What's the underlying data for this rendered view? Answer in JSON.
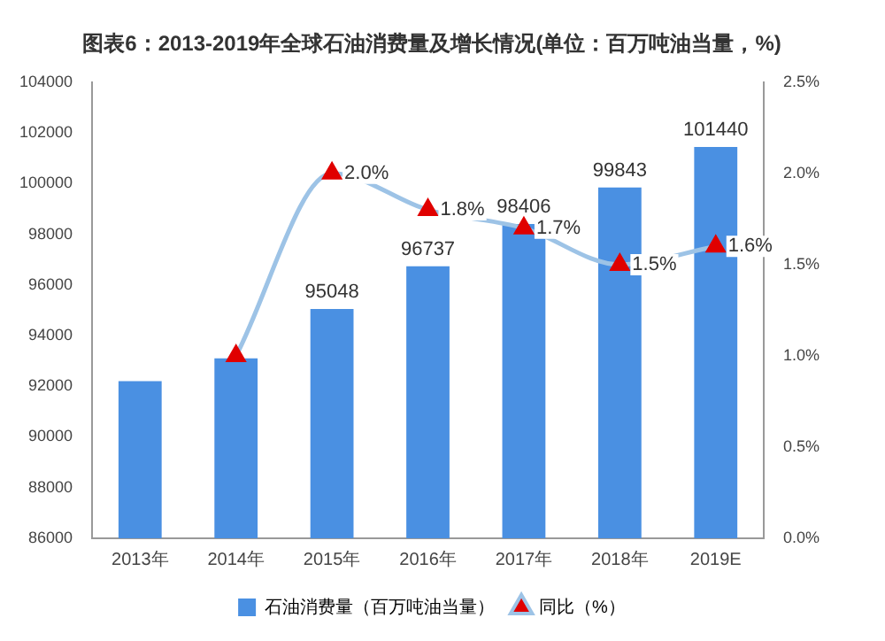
{
  "chart_data": {
    "type": "bar",
    "title": "图表6：2013-2019年全球石油消费量及增长情况(单位：百万吨油当量，%)",
    "categories": [
      "2013年",
      "2014年",
      "2015年",
      "2016年",
      "2017年",
      "2018年",
      "2019E"
    ],
    "series": [
      {
        "name": "石油消费量（百万吨油当量）",
        "color": "#4a90e2",
        "values": [
          92200,
          93100,
          95048,
          96737,
          98406,
          99843,
          101440
        ],
        "value_labels": [
          null,
          null,
          "95048",
          "96737",
          "98406",
          "99843",
          "101440"
        ]
      },
      {
        "name": "同比（%）",
        "type": "line",
        "axis": "y2",
        "color": "#9dc3e6",
        "marker": "triangle",
        "values": [
          null,
          1.0,
          2.0,
          1.8,
          1.7,
          1.5,
          1.6
        ],
        "value_labels": [
          null,
          null,
          "2.0%",
          "1.8%",
          "1.7%",
          "1.5%",
          "1.6%"
        ]
      }
    ],
    "ylim": [
      86000,
      104000
    ],
    "yticks": [
      86000,
      88000,
      90000,
      92000,
      94000,
      96000,
      98000,
      100000,
      102000,
      104000
    ],
    "y2lim": [
      0,
      2.5
    ],
    "y2ticks": [
      {
        "value": 0,
        "label": "0.0%"
      },
      {
        "value": 0.5,
        "label": "0.5%"
      },
      {
        "value": 1,
        "label": "1.0%"
      },
      {
        "value": 1.5,
        "label": "1.5%"
      },
      {
        "value": 2,
        "label": "2.0%"
      },
      {
        "value": 2.5,
        "label": "2.5%"
      }
    ],
    "grid": false,
    "legend": "bottom"
  }
}
